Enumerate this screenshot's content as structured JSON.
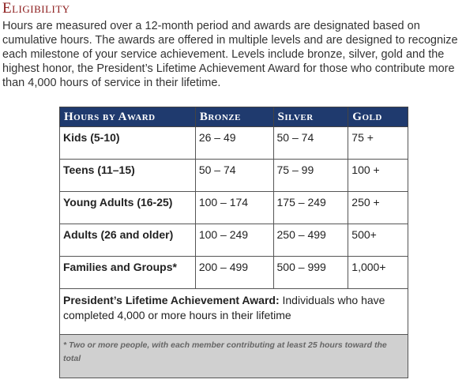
{
  "heading": "Eligibility",
  "paragraph": "Hours are measured over a 12-month period and awards are designated based on cumulative hours. The awards are offered in multiple levels and are designed to recognize each milestone of your service achievement. Levels include bronze, silver, gold and the highest honor, the President’s Lifetime Achievement Award for those who contribute more than 4,000 hours of service in their lifetime.",
  "table": {
    "headers": [
      "Hours by Award",
      "Bronze",
      "Silver",
      "Gold"
    ],
    "rows": [
      [
        "Kids (5-10)",
        "26 – 49",
        "50 – 74",
        "75 +"
      ],
      [
        "Teens (11–15)",
        "50 – 74",
        "75 – 99",
        "100 +"
      ],
      [
        "Young Adults (16-25)",
        "100 – 174",
        "175 – 249",
        "250 +"
      ],
      [
        "Adults (26 and older)",
        "100 – 249",
        "250 – 499",
        "500+"
      ],
      [
        "Families and Groups*",
        "200 – 499",
        "500 – 999",
        "1,000+"
      ]
    ],
    "award": {
      "title": "President’s Lifetime Achievement Award:",
      "text": " Individuals who have completed 4,000 or more hours in their lifetime"
    },
    "footnote": "* Two or more people, with each member contributing at least 25 hours toward the total"
  }
}
